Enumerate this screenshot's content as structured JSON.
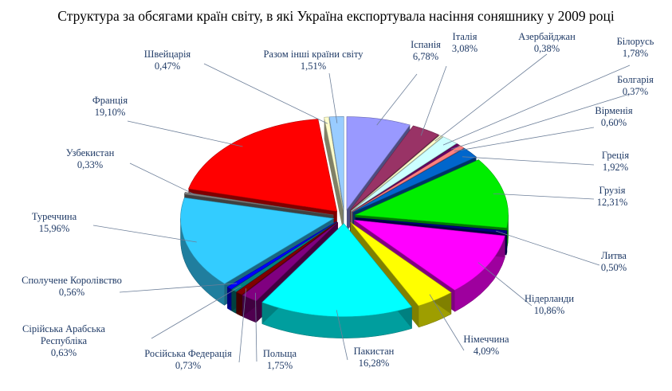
{
  "chart_data": {
    "type": "pie",
    "title": "Структура за обсягами країн світу, в які Україна експортувала насіння соняшнику у 2009 році",
    "slices": [
      {
        "name": "Іспанія",
        "value": 6.78,
        "value_label": "6,78%",
        "color": "#9999ff"
      },
      {
        "name": "Італія",
        "value": 3.08,
        "value_label": "3,08%",
        "color": "#993366"
      },
      {
        "name": "Азербайджан",
        "value": 0.38,
        "value_label": "0,38%",
        "color": "#ffffcc"
      },
      {
        "name": "Білорусь",
        "value": 1.78,
        "value_label": "1,78%",
        "color": "#ccffff"
      },
      {
        "name": "Болгарія",
        "value": 0.37,
        "value_label": "0,37%",
        "color": "#660066"
      },
      {
        "name": "Вірменія",
        "value": 0.6,
        "value_label": "0,60%",
        "color": "#ff8080"
      },
      {
        "name": "Греція",
        "value": 1.92,
        "value_label": "1,92%",
        "color": "#0066cc"
      },
      {
        "name": "Грузія",
        "value": 12.31,
        "value_label": "12,31%",
        "color": "#00ee00"
      },
      {
        "name": "Литва",
        "value": 0.5,
        "value_label": "0,50%",
        "color": "#000080"
      },
      {
        "name": "Нідерланди",
        "value": 10.86,
        "value_label": "10,86%",
        "color": "#ff00ff"
      },
      {
        "name": "Німеччина",
        "value": 4.09,
        "value_label": "4,09%",
        "color": "#ffff00"
      },
      {
        "name": "Пакистан",
        "value": 16.28,
        "value_label": "16,28%",
        "color": "#00ffff"
      },
      {
        "name": "Польща",
        "value": 1.75,
        "value_label": "1,75%",
        "color": "#800080"
      },
      {
        "name": "Російська Федерація",
        "value": 0.73,
        "value_label": "0,73%",
        "color": "#800000"
      },
      {
        "name": "Сірійська Арабська Республіка",
        "value": 0.63,
        "value_label": "0,63%",
        "color": "#008080"
      },
      {
        "name": "Сполучене Королівство",
        "value": 0.56,
        "value_label": "0,56%",
        "color": "#0000ff"
      },
      {
        "name": "Туреччина",
        "value": 15.96,
        "value_label": "15,96%",
        "color": "#33ccff"
      },
      {
        "name": "Узбекистан",
        "value": 0.33,
        "value_label": "0,33%",
        "color": "#808080"
      },
      {
        "name": "Франція",
        "value": 19.1,
        "value_label": "19,10%",
        "color": "#ff0000"
      },
      {
        "name": "Швейцарія",
        "value": 0.47,
        "value_label": "0,47%",
        "color": "#ffffcc"
      },
      {
        "name": "Разом інші країни світу",
        "value": 1.51,
        "value_label": "1,51%",
        "color": "#99ccff"
      }
    ],
    "legend": "none",
    "style": "3d-exploded-pie"
  }
}
